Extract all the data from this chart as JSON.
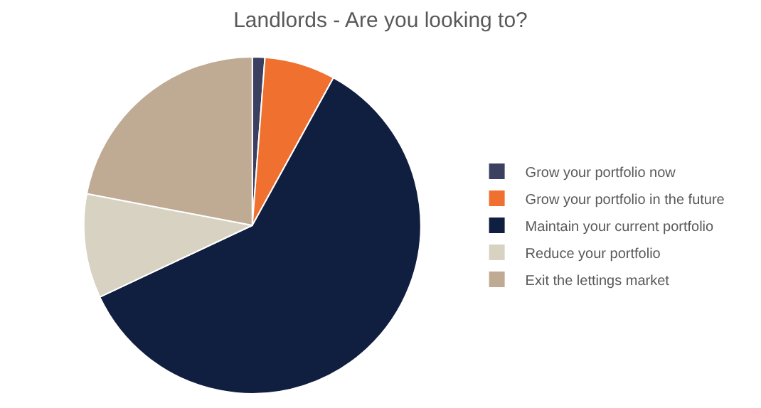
{
  "chart_data": {
    "type": "pie",
    "title": "Landlords - Are you looking to?",
    "categories": [
      "Grow your portfolio now",
      "Grow your portfolio in the future",
      "Maintain your current portfolio",
      "Reduce your portfolio",
      "Exit the lettings market"
    ],
    "values": [
      1.2,
      6.8,
      60,
      10,
      22
    ],
    "colors": [
      "#3c4060",
      "#f07030",
      "#101e40",
      "#d8d2c2",
      "#bfab94"
    ],
    "legend": "right"
  }
}
